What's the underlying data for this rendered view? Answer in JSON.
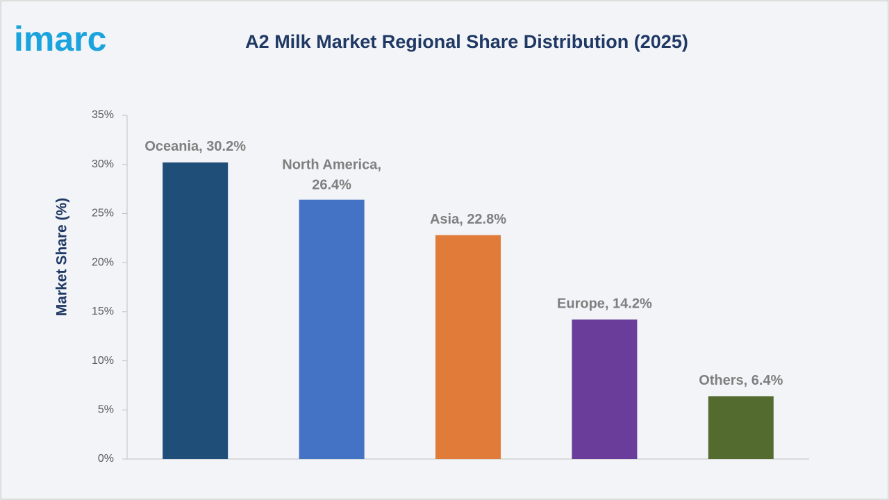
{
  "logo": "imarc",
  "chart_data": {
    "type": "bar",
    "title": "A2 Milk Market Regional Share Distribution (2025)",
    "y_label": "Market Share (%)",
    "categories": [
      "Oceania",
      "North America",
      "Asia",
      "Europe",
      "Others"
    ],
    "values": [
      30.2,
      26.4,
      22.8,
      14.2,
      6.4
    ],
    "value_labels": [
      "Oceania, 30.2%",
      "North America, 26.4%",
      "Asia, 22.8%",
      "Europe, 14.2%",
      "Others, 6.4%"
    ],
    "colors": [
      "#1f4e79",
      "#4472c4",
      "#e07b39",
      "#6a3d9a",
      "#536b2f"
    ],
    "ylim": [
      0,
      35
    ],
    "yticks": [
      {
        "value": 0,
        "label": "0%"
      },
      {
        "value": 5,
        "label": "5%"
      },
      {
        "value": 10,
        "label": "10%"
      },
      {
        "value": 15,
        "label": "15%"
      },
      {
        "value": 20,
        "label": "20%"
      },
      {
        "value": 25,
        "label": "25%"
      },
      {
        "value": 30,
        "label": "30%"
      },
      {
        "value": 35,
        "label": "35%"
      }
    ],
    "grid": false
  }
}
